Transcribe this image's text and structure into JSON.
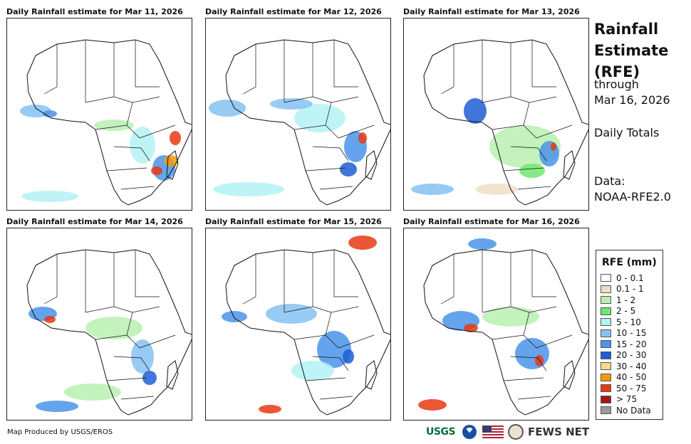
{
  "panels": [
    {
      "title": "Daily Rainfall estimate for Mar 11, 2026"
    },
    {
      "title": "Daily Rainfall estimate for Mar 12, 2026"
    },
    {
      "title": "Daily Rainfall estimate for Mar 13, 2026"
    },
    {
      "title": "Daily Rainfall estimate for Mar 14, 2026"
    },
    {
      "title": "Daily Rainfall estimate for Mar 15, 2026"
    },
    {
      "title": "Daily Rainfall estimate for Mar 16, 2026"
    }
  ],
  "sidebar": {
    "title_lines": [
      "Rainfall",
      "Estimate",
      "(RFE)"
    ],
    "through_label": "through",
    "through_date": "Mar 16, 2026",
    "totals_label": "Daily Totals",
    "data_label": "Data:",
    "data_source": "NOAA-RFE2.0"
  },
  "legend": {
    "title": "RFE (mm)",
    "items": [
      {
        "label": "0 - 0.1",
        "color": "#ffffff"
      },
      {
        "label": "0.1 - 1",
        "color": "#eedfc4"
      },
      {
        "label": "1 - 2",
        "color": "#b8f0b2"
      },
      {
        "label": "2 - 5",
        "color": "#6ee86e"
      },
      {
        "label": "5 - 10",
        "color": "#b4f2f6"
      },
      {
        "label": "10 - 15",
        "color": "#86c2f2"
      },
      {
        "label": "15 - 20",
        "color": "#4a94ea"
      },
      {
        "label": "20 - 30",
        "color": "#1e5ed6"
      },
      {
        "label": "30 - 40",
        "color": "#f6dc86"
      },
      {
        "label": "40 - 50",
        "color": "#f59b0a"
      },
      {
        "label": "50 - 75",
        "color": "#e83a10"
      },
      {
        "label": "> 75",
        "color": "#a6161a"
      },
      {
        "label": "No Data",
        "color": "#9a9a9a"
      }
    ]
  },
  "footer": {
    "credit": "Map Produced by USGS/EROS"
  },
  "logos": {
    "usgs": "USGS",
    "fews": "FEWS NET"
  }
}
